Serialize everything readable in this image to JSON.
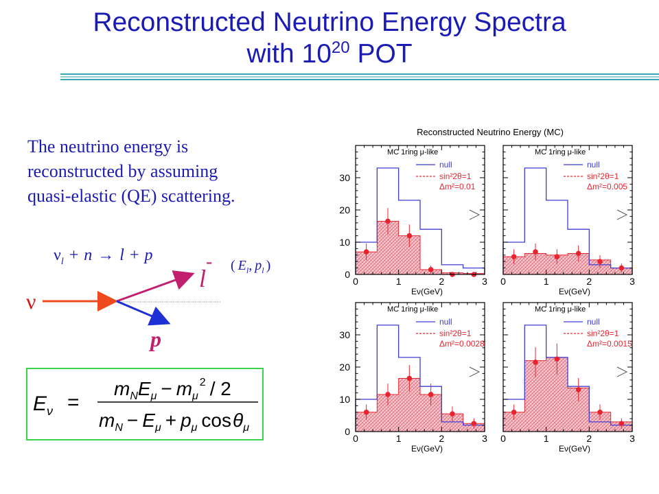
{
  "slide": {
    "title_line1": "Reconstructed Neutrino Energy Spectra",
    "title_line2_prefix": "with 10",
    "title_line2_exp": "20",
    "title_line2_suffix": " POT",
    "intro_line1": "The neutrino energy is",
    "intro_line2": "reconstructed by assuming",
    "intro_line3": "quasi-elastic (QE) scattering."
  },
  "diagram": {
    "reaction": {
      "nu": "ν",
      "nu_sub": "l",
      "plus1": "+",
      "n": "n",
      "arrow": "→",
      "l": "l",
      "plus2": "+",
      "p": "p"
    },
    "kinematics": {
      "open": "(",
      "E": "E",
      "E_sub": "l",
      "comma": ",",
      "p": "p",
      "p_sub": "l",
      "close": ")"
    },
    "incoming_label": "ν",
    "lepton_label": "l",
    "lepton_charge": "-",
    "proton_label": "p",
    "colors": {
      "incoming": "#ee4a1e",
      "lepton": "#c21f6e",
      "proton": "#1f2fd6"
    }
  },
  "formula": {
    "lhs": "E",
    "lhs_sub": "ν",
    "equals": "=",
    "num_m": "m",
    "num_m_sub": "N",
    "num_E": "E",
    "num_E_sub": "μ",
    "num_minus": "−",
    "num_m2": "m",
    "num_m2_sub": "μ",
    "num_exp": "2",
    "num_div": "/ 2",
    "den_m": "m",
    "den_m_sub": "N",
    "den_minus": "−",
    "den_E": "E",
    "den_E_sub": "μ",
    "den_plus": "+",
    "den_p": "p",
    "den_p_sub": "μ",
    "den_cos": "cos",
    "den_theta": "θ",
    "den_theta_sub": "μ"
  },
  "chart_data": {
    "type": "bar",
    "title": "Reconstructed Neutrino Energy (MC)",
    "xlabel": "Eν(GeV)",
    "xlim": [
      0,
      3
    ],
    "ylim": [
      0,
      40
    ],
    "xticks": [
      0,
      1,
      2,
      3
    ],
    "yticks": [
      0,
      10,
      20,
      30
    ],
    "bin_edges": [
      0,
      0.5,
      1.0,
      1.5,
      2.0,
      2.5,
      3.0
    ],
    "null_values": [
      10,
      33,
      23,
      14,
      3,
      2
    ],
    "colors": {
      "null": "#3c3cd8",
      "osc": "#e8242e",
      "hatch": "#e06070",
      "axis": "#000000"
    },
    "panels": [
      {
        "label": "MC 1ring μ-like",
        "legend_null": "null",
        "legend_sin": "sin²2θ=1",
        "legend_dm": "Δm²=0.01",
        "osc_values": [
          7,
          16.5,
          12,
          1.5,
          0.5,
          0.3
        ],
        "data": {
          "x": [
            0.25,
            0.75,
            1.25,
            1.75,
            2.25,
            2.75
          ],
          "y": [
            7,
            16.5,
            12,
            1.5,
            0,
            0
          ],
          "err": [
            2.6,
            4.1,
            3.5,
            1.2,
            0,
            0
          ]
        }
      },
      {
        "label": "MC 1ring μ-like",
        "legend_null": "null",
        "legend_sin": "sin²2θ=1",
        "legend_dm": "Δm²=0.005",
        "osc_values": [
          5.5,
          6.5,
          6,
          6.5,
          4.5,
          2
        ],
        "data": {
          "x": [
            0.25,
            0.75,
            1.25,
            1.75,
            2.25,
            2.75
          ],
          "y": [
            5.5,
            7,
            5.5,
            6.5,
            4,
            2
          ],
          "err": [
            2.3,
            2.6,
            2.3,
            2.5,
            2,
            1.4
          ]
        }
      },
      {
        "label": "MC 1ring μ-like",
        "legend_null": "null",
        "legend_sin": "sin²2θ=1",
        "legend_dm": "Δm²=0.0028",
        "osc_values": [
          6,
          11.5,
          16.5,
          11.5,
          5.5,
          2.5
        ],
        "data": {
          "x": [
            0.25,
            0.75,
            1.25,
            1.75,
            2.25,
            2.75
          ],
          "y": [
            6,
            11.5,
            16.5,
            11.5,
            5.5,
            2.5
          ],
          "err": [
            2.4,
            3.4,
            4.1,
            3.4,
            2.3,
            1.6
          ]
        }
      },
      {
        "label": "MC 1ring μ-like",
        "legend_null": "null",
        "legend_sin": "sin²2θ=1",
        "legend_dm": "Δm²=0.0015",
        "osc_values": [
          6,
          22,
          23,
          13.5,
          6,
          3
        ],
        "data": {
          "x": [
            0.25,
            0.75,
            1.25,
            1.75,
            2.25,
            2.75
          ],
          "y": [
            6,
            21.5,
            22.5,
            13,
            6,
            2.5
          ],
          "err": [
            2.4,
            4.7,
            4.8,
            3.6,
            2.4,
            1.6
          ]
        }
      }
    ]
  }
}
